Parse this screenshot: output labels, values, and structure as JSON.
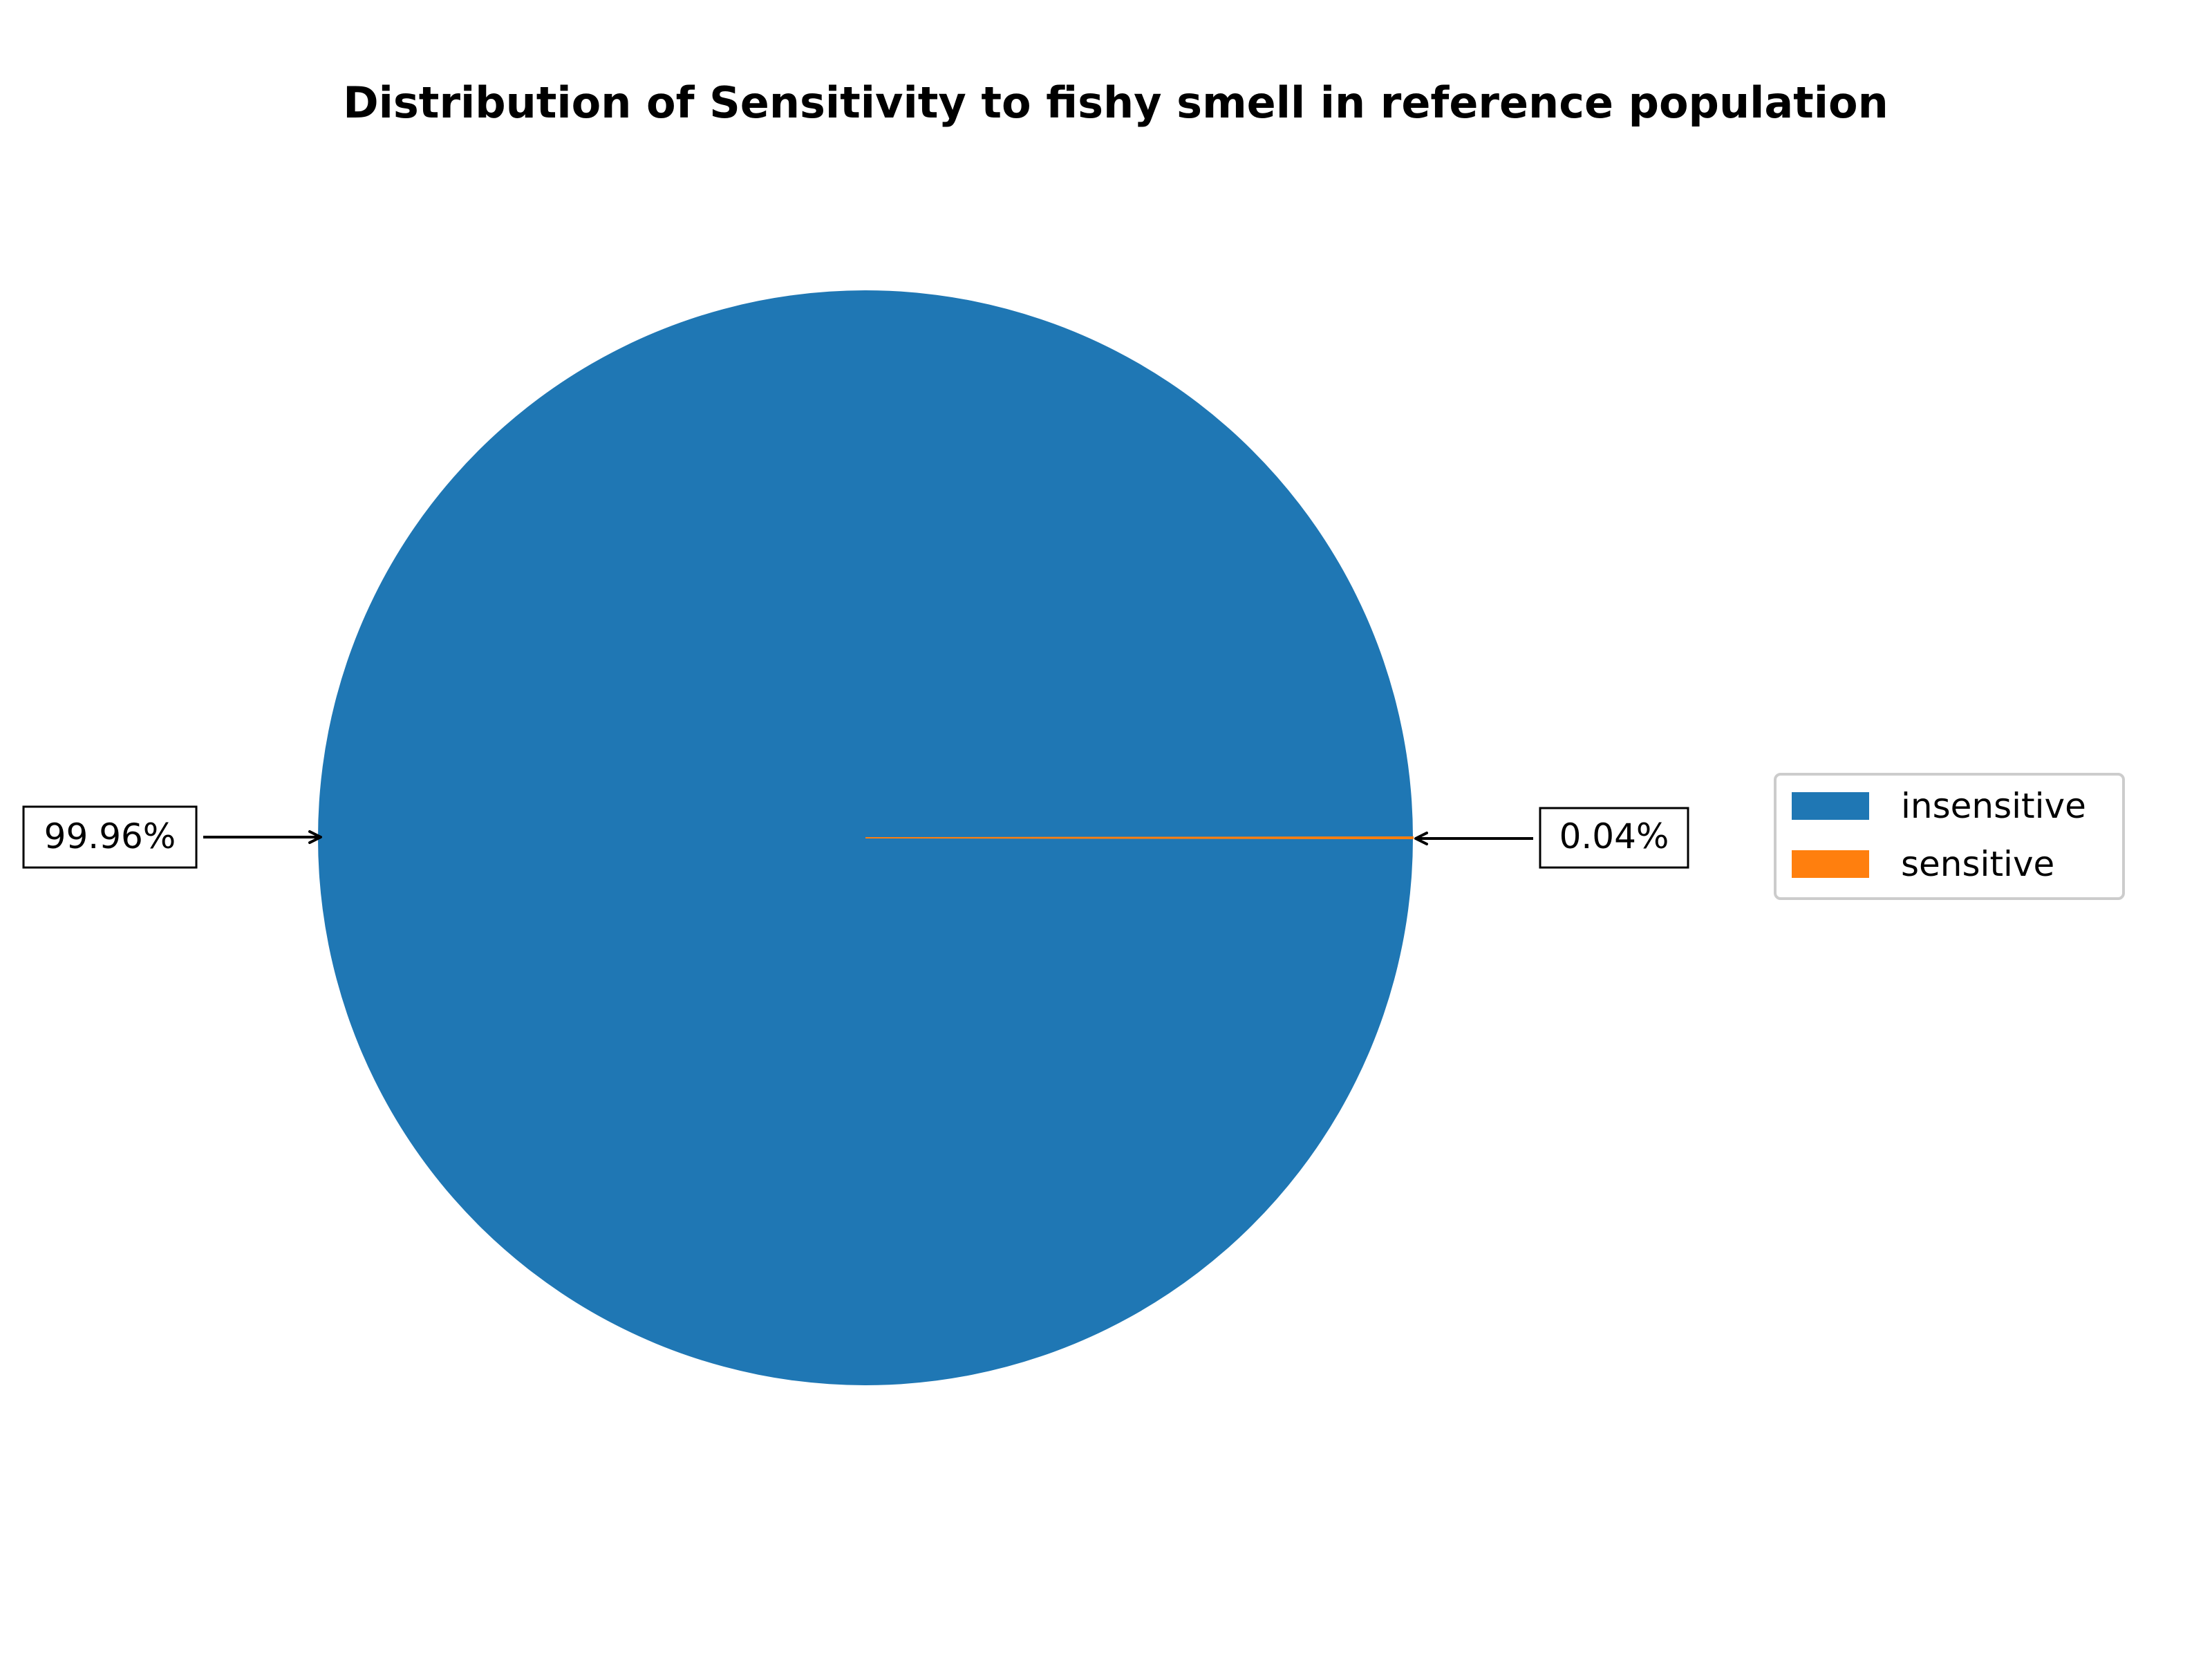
{
  "chart_data": {
    "type": "pie",
    "title": "Distribution of Sensitivity to fishy smell in reference population",
    "slices": [
      {
        "label": "insensitive",
        "value": 99.96,
        "display": "99.96%",
        "color": "#1f77b4"
      },
      {
        "label": "sensitive",
        "value": 0.04,
        "display": "0.04%",
        "color": "#ff7f0e"
      }
    ],
    "legend": {
      "position": "right",
      "entries": [
        "insensitive",
        "sensitive"
      ]
    }
  }
}
